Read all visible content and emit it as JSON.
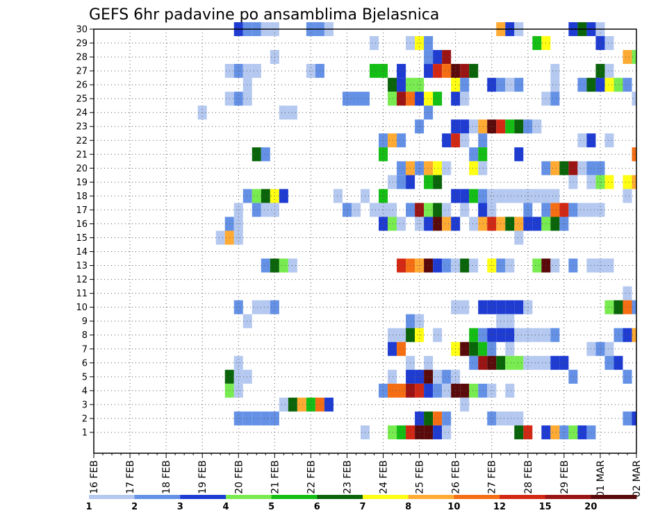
{
  "chart_data": {
    "type": "heatmap",
    "title": "GEFS 6hr padavine po ansamblima Bjelasnica",
    "xlabel": "",
    "ylabel": "",
    "x_ticks": [
      "16 FEB",
      "17 FEB",
      "18 FEB",
      "19 FEB",
      "20 FEB",
      "21 FEB",
      "22 FEB",
      "23 FEB",
      "24 FEB",
      "25 FEB",
      "26 FEB",
      "27 FEB",
      "28 FEB",
      "29 FEB",
      "01 MAR",
      "02 MAR"
    ],
    "y_ticks": [
      1,
      2,
      3,
      4,
      5,
      6,
      7,
      8,
      9,
      10,
      11,
      12,
      13,
      14,
      15,
      16,
      17,
      18,
      19,
      20,
      21,
      22,
      23,
      24,
      25,
      26,
      27,
      28,
      29,
      30
    ],
    "xlim": [
      0,
      60
    ],
    "ylim": [
      0,
      30
    ],
    "x_unit": "6-hour steps from 16 FEB 00Z",
    "colorbar": {
      "labels": [
        "1",
        "2",
        "3",
        "4",
        "5",
        "6",
        "7",
        "8",
        "10",
        "12",
        "15",
        "20"
      ],
      "colors": [
        "#b4c8f0",
        "#6491e6",
        "#1e3cd2",
        "#78eb50",
        "#14be14",
        "#0a640a",
        "#ffff14",
        "#ffaa32",
        "#f56e14",
        "#d22814",
        "#9b1414",
        "#5a0a0a"
      ]
    },
    "cells": [
      [
        16,
        30,
        3
      ],
      [
        17,
        30,
        2
      ],
      [
        18,
        30,
        2
      ],
      [
        19,
        30,
        1
      ],
      [
        20,
        30,
        1
      ],
      [
        24,
        30,
        2
      ],
      [
        25,
        30,
        2
      ],
      [
        26,
        30,
        1
      ],
      [
        45,
        30,
        8
      ],
      [
        46,
        30,
        3
      ],
      [
        47,
        30,
        1
      ],
      [
        53,
        30,
        3
      ],
      [
        54,
        30,
        6
      ],
      [
        55,
        30,
        3
      ],
      [
        56,
        30,
        1
      ],
      [
        31,
        29,
        1
      ],
      [
        35,
        29,
        1
      ],
      [
        36,
        29,
        7
      ],
      [
        37,
        29,
        2
      ],
      [
        49,
        29,
        5
      ],
      [
        50,
        29,
        7
      ],
      [
        56,
        29,
        3
      ],
      [
        57,
        29,
        1
      ],
      [
        20,
        28,
        1
      ],
      [
        37,
        28,
        2
      ],
      [
        38,
        28,
        3
      ],
      [
        39,
        28,
        11
      ],
      [
        59,
        28,
        8
      ],
      [
        60,
        28,
        4
      ],
      [
        15,
        27,
        1
      ],
      [
        16,
        27,
        2
      ],
      [
        17,
        27,
        1
      ],
      [
        18,
        27,
        1
      ],
      [
        24,
        27,
        1
      ],
      [
        25,
        27,
        2
      ],
      [
        31,
        27,
        5
      ],
      [
        32,
        27,
        5
      ],
      [
        34,
        27,
        3
      ],
      [
        37,
        27,
        3
      ],
      [
        38,
        27,
        10
      ],
      [
        39,
        27,
        9
      ],
      [
        40,
        27,
        12
      ],
      [
        41,
        27,
        11
      ],
      [
        42,
        27,
        6
      ],
      [
        51,
        27,
        1
      ],
      [
        56,
        27,
        6
      ],
      [
        57,
        27,
        1
      ],
      [
        17,
        26,
        1
      ],
      [
        33,
        26,
        6
      ],
      [
        34,
        26,
        3
      ],
      [
        35,
        26,
        4
      ],
      [
        36,
        26,
        4
      ],
      [
        40,
        26,
        7
      ],
      [
        41,
        26,
        2
      ],
      [
        44,
        26,
        3
      ],
      [
        45,
        26,
        2
      ],
      [
        46,
        26,
        1
      ],
      [
        47,
        26,
        2
      ],
      [
        51,
        26,
        1
      ],
      [
        54,
        26,
        2
      ],
      [
        55,
        26,
        6
      ],
      [
        56,
        26,
        3
      ],
      [
        57,
        26,
        7
      ],
      [
        58,
        26,
        4
      ],
      [
        59,
        26,
        2
      ],
      [
        15,
        25,
        1
      ],
      [
        16,
        25,
        2
      ],
      [
        17,
        25,
        1
      ],
      [
        28,
        25,
        2
      ],
      [
        29,
        25,
        2
      ],
      [
        30,
        25,
        2
      ],
      [
        33,
        25,
        4
      ],
      [
        34,
        25,
        11
      ],
      [
        35,
        25,
        9
      ],
      [
        36,
        25,
        3
      ],
      [
        37,
        25,
        7
      ],
      [
        38,
        25,
        5
      ],
      [
        40,
        25,
        3
      ],
      [
        41,
        25,
        1
      ],
      [
        50,
        25,
        1
      ],
      [
        51,
        25,
        2
      ],
      [
        60,
        25,
        1
      ],
      [
        12,
        24,
        1
      ],
      [
        21,
        24,
        1
      ],
      [
        22,
        24,
        1
      ],
      [
        37,
        24,
        2
      ],
      [
        36,
        23,
        2
      ],
      [
        40,
        23,
        3
      ],
      [
        41,
        23,
        3
      ],
      [
        42,
        23,
        1
      ],
      [
        43,
        23,
        8
      ],
      [
        44,
        23,
        12
      ],
      [
        45,
        23,
        10
      ],
      [
        46,
        23,
        5
      ],
      [
        47,
        23,
        6
      ],
      [
        48,
        23,
        2
      ],
      [
        49,
        23,
        1
      ],
      [
        32,
        22,
        2
      ],
      [
        33,
        22,
        8
      ],
      [
        34,
        22,
        2
      ],
      [
        39,
        22,
        3
      ],
      [
        40,
        22,
        10
      ],
      [
        41,
        22,
        1
      ],
      [
        43,
        22,
        2
      ],
      [
        54,
        22,
        1
      ],
      [
        55,
        22,
        3
      ],
      [
        57,
        22,
        1
      ],
      [
        18,
        21,
        6
      ],
      [
        19,
        21,
        2
      ],
      [
        32,
        21,
        5
      ],
      [
        42,
        21,
        2
      ],
      [
        43,
        21,
        5
      ],
      [
        47,
        21,
        3
      ],
      [
        60,
        21,
        9
      ],
      [
        34,
        20,
        2
      ],
      [
        35,
        20,
        8
      ],
      [
        36,
        20,
        2
      ],
      [
        37,
        20,
        8
      ],
      [
        38,
        20,
        7
      ],
      [
        39,
        20,
        1
      ],
      [
        42,
        20,
        7
      ],
      [
        43,
        20,
        1
      ],
      [
        50,
        20,
        2
      ],
      [
        51,
        20,
        8
      ],
      [
        52,
        20,
        6
      ],
      [
        53,
        20,
        11
      ],
      [
        54,
        20,
        1
      ],
      [
        55,
        20,
        2
      ],
      [
        56,
        20,
        2
      ],
      [
        33,
        19,
        1
      ],
      [
        34,
        19,
        2
      ],
      [
        35,
        19,
        3
      ],
      [
        37,
        19,
        5
      ],
      [
        38,
        19,
        6
      ],
      [
        53,
        19,
        1
      ],
      [
        55,
        19,
        1
      ],
      [
        56,
        19,
        4
      ],
      [
        57,
        19,
        7
      ],
      [
        59,
        19,
        7
      ],
      [
        60,
        19,
        8
      ],
      [
        17,
        18,
        2
      ],
      [
        18,
        18,
        4
      ],
      [
        19,
        18,
        6
      ],
      [
        20,
        18,
        7
      ],
      [
        21,
        18,
        3
      ],
      [
        27,
        18,
        1
      ],
      [
        30,
        18,
        1
      ],
      [
        32,
        18,
        5
      ],
      [
        40,
        18,
        3
      ],
      [
        41,
        18,
        3
      ],
      [
        42,
        18,
        5
      ],
      [
        43,
        18,
        2
      ],
      [
        44,
        18,
        1
      ],
      [
        45,
        18,
        1
      ],
      [
        46,
        18,
        1
      ],
      [
        47,
        18,
        1
      ],
      [
        48,
        18,
        1
      ],
      [
        49,
        18,
        1
      ],
      [
        50,
        18,
        1
      ],
      [
        51,
        18,
        1
      ],
      [
        59,
        18,
        1
      ],
      [
        16,
        17,
        1
      ],
      [
        18,
        17,
        2
      ],
      [
        19,
        17,
        1
      ],
      [
        20,
        17,
        1
      ],
      [
        28,
        17,
        2
      ],
      [
        29,
        17,
        1
      ],
      [
        31,
        17,
        1
      ],
      [
        32,
        17,
        1
      ],
      [
        33,
        17,
        1
      ],
      [
        35,
        17,
        2
      ],
      [
        36,
        17,
        11
      ],
      [
        37,
        17,
        4
      ],
      [
        38,
        17,
        6
      ],
      [
        39,
        17,
        1
      ],
      [
        41,
        17,
        1
      ],
      [
        43,
        17,
        3
      ],
      [
        44,
        17,
        1
      ],
      [
        48,
        17,
        2
      ],
      [
        50,
        17,
        2
      ],
      [
        51,
        17,
        9
      ],
      [
        52,
        17,
        10
      ],
      [
        53,
        17,
        2
      ],
      [
        54,
        17,
        1
      ],
      [
        55,
        17,
        1
      ],
      [
        56,
        17,
        1
      ],
      [
        15,
        16,
        2
      ],
      [
        16,
        16,
        1
      ],
      [
        32,
        16,
        3
      ],
      [
        33,
        16,
        4
      ],
      [
        34,
        16,
        1
      ],
      [
        36,
        16,
        1
      ],
      [
        37,
        16,
        3
      ],
      [
        38,
        16,
        12
      ],
      [
        39,
        16,
        8
      ],
      [
        40,
        16,
        3
      ],
      [
        42,
        16,
        1
      ],
      [
        43,
        16,
        8
      ],
      [
        44,
        16,
        10
      ],
      [
        45,
        16,
        8
      ],
      [
        46,
        16,
        6
      ],
      [
        47,
        16,
        8
      ],
      [
        48,
        16,
        3
      ],
      [
        49,
        16,
        3
      ],
      [
        50,
        16,
        4
      ],
      [
        51,
        16,
        6
      ],
      [
        52,
        16,
        2
      ],
      [
        14,
        15,
        1
      ],
      [
        15,
        15,
        8
      ],
      [
        16,
        15,
        1
      ],
      [
        47,
        15,
        1
      ],
      [
        19,
        13,
        2
      ],
      [
        20,
        13,
        6
      ],
      [
        21,
        13,
        4
      ],
      [
        22,
        13,
        1
      ],
      [
        34,
        13,
        10
      ],
      [
        35,
        13,
        9
      ],
      [
        36,
        13,
        8
      ],
      [
        37,
        13,
        12
      ],
      [
        38,
        13,
        3
      ],
      [
        39,
        13,
        2
      ],
      [
        40,
        13,
        1
      ],
      [
        41,
        13,
        6
      ],
      [
        42,
        13,
        1
      ],
      [
        44,
        13,
        7
      ],
      [
        45,
        13,
        2
      ],
      [
        46,
        13,
        1
      ],
      [
        49,
        13,
        4
      ],
      [
        50,
        13,
        12
      ],
      [
        51,
        13,
        1
      ],
      [
        53,
        13,
        2
      ],
      [
        55,
        13,
        1
      ],
      [
        56,
        13,
        1
      ],
      [
        57,
        13,
        1
      ],
      [
        59,
        11,
        1
      ],
      [
        16,
        10,
        2
      ],
      [
        18,
        10,
        1
      ],
      [
        19,
        10,
        1
      ],
      [
        20,
        10,
        2
      ],
      [
        40,
        10,
        1
      ],
      [
        41,
        10,
        1
      ],
      [
        43,
        10,
        3
      ],
      [
        44,
        10,
        3
      ],
      [
        45,
        10,
        3
      ],
      [
        46,
        10,
        3
      ],
      [
        47,
        10,
        3
      ],
      [
        48,
        10,
        1
      ],
      [
        57,
        10,
        4
      ],
      [
        58,
        10,
        6
      ],
      [
        59,
        10,
        9
      ],
      [
        60,
        10,
        2
      ],
      [
        17,
        9,
        1
      ],
      [
        35,
        9,
        2
      ],
      [
        36,
        9,
        1
      ],
      [
        45,
        9,
        1
      ],
      [
        46,
        9,
        1
      ],
      [
        33,
        8,
        1
      ],
      [
        34,
        8,
        1
      ],
      [
        35,
        8,
        6
      ],
      [
        36,
        8,
        7
      ],
      [
        38,
        8,
        1
      ],
      [
        42,
        8,
        5
      ],
      [
        43,
        8,
        2
      ],
      [
        44,
        8,
        3
      ],
      [
        45,
        8,
        3
      ],
      [
        46,
        8,
        3
      ],
      [
        47,
        8,
        1
      ],
      [
        48,
        8,
        1
      ],
      [
        49,
        8,
        1
      ],
      [
        50,
        8,
        1
      ],
      [
        51,
        8,
        2
      ],
      [
        58,
        8,
        2
      ],
      [
        59,
        8,
        3
      ],
      [
        60,
        8,
        8
      ],
      [
        33,
        7,
        3
      ],
      [
        34,
        7,
        9
      ],
      [
        40,
        7,
        7
      ],
      [
        41,
        7,
        12
      ],
      [
        42,
        7,
        6
      ],
      [
        43,
        7,
        5
      ],
      [
        44,
        7,
        2
      ],
      [
        46,
        7,
        1
      ],
      [
        55,
        7,
        1
      ],
      [
        56,
        7,
        2
      ],
      [
        57,
        7,
        1
      ],
      [
        16,
        6,
        1
      ],
      [
        35,
        6,
        1
      ],
      [
        37,
        6,
        1
      ],
      [
        42,
        6,
        2
      ],
      [
        43,
        6,
        11
      ],
      [
        44,
        6,
        12
      ],
      [
        45,
        6,
        6
      ],
      [
        46,
        6,
        4
      ],
      [
        47,
        6,
        4
      ],
      [
        48,
        6,
        1
      ],
      [
        49,
        6,
        1
      ],
      [
        50,
        6,
        1
      ],
      [
        51,
        6,
        3
      ],
      [
        52,
        6,
        3
      ],
      [
        57,
        6,
        2
      ],
      [
        58,
        6,
        3
      ],
      [
        15,
        5,
        6
      ],
      [
        16,
        5,
        1
      ],
      [
        17,
        5,
        1
      ],
      [
        33,
        5,
        1
      ],
      [
        35,
        5,
        3
      ],
      [
        36,
        5,
        3
      ],
      [
        37,
        5,
        12
      ],
      [
        38,
        5,
        1
      ],
      [
        39,
        5,
        2
      ],
      [
        40,
        5,
        1
      ],
      [
        53,
        5,
        2
      ],
      [
        59,
        5,
        2
      ],
      [
        15,
        4,
        4
      ],
      [
        16,
        4,
        1
      ],
      [
        32,
        4,
        2
      ],
      [
        33,
        4,
        9
      ],
      [
        34,
        4,
        9
      ],
      [
        35,
        4,
        11
      ],
      [
        36,
        4,
        10
      ],
      [
        37,
        4,
        3
      ],
      [
        38,
        4,
        2
      ],
      [
        39,
        4,
        1
      ],
      [
        40,
        4,
        12
      ],
      [
        41,
        4,
        12
      ],
      [
        42,
        4,
        4
      ],
      [
        43,
        4,
        2
      ],
      [
        44,
        4,
        1
      ],
      [
        46,
        4,
        1
      ],
      [
        21,
        3,
        1
      ],
      [
        22,
        3,
        6
      ],
      [
        23,
        3,
        8
      ],
      [
        24,
        3,
        5
      ],
      [
        25,
        3,
        9
      ],
      [
        26,
        3,
        3
      ],
      [
        41,
        3,
        1
      ],
      [
        16,
        2,
        2
      ],
      [
        17,
        2,
        2
      ],
      [
        18,
        2,
        2
      ],
      [
        19,
        2,
        2
      ],
      [
        20,
        2,
        2
      ],
      [
        36,
        2,
        3
      ],
      [
        37,
        2,
        6
      ],
      [
        38,
        2,
        9
      ],
      [
        39,
        2,
        2
      ],
      [
        44,
        2,
        2
      ],
      [
        45,
        2,
        1
      ],
      [
        46,
        2,
        1
      ],
      [
        47,
        2,
        1
      ],
      [
        59,
        2,
        2
      ],
      [
        60,
        2,
        3
      ],
      [
        30,
        1,
        1
      ],
      [
        33,
        1,
        4
      ],
      [
        34,
        1,
        5
      ],
      [
        35,
        1,
        10
      ],
      [
        36,
        1,
        12
      ],
      [
        37,
        1,
        12
      ],
      [
        38,
        1,
        3
      ],
      [
        39,
        1,
        1
      ],
      [
        47,
        1,
        6
      ],
      [
        48,
        1,
        10
      ],
      [
        50,
        1,
        3
      ],
      [
        51,
        1,
        8
      ],
      [
        52,
        1,
        2
      ],
      [
        53,
        1,
        4
      ],
      [
        54,
        1,
        3
      ],
      [
        55,
        1,
        2
      ]
    ]
  }
}
